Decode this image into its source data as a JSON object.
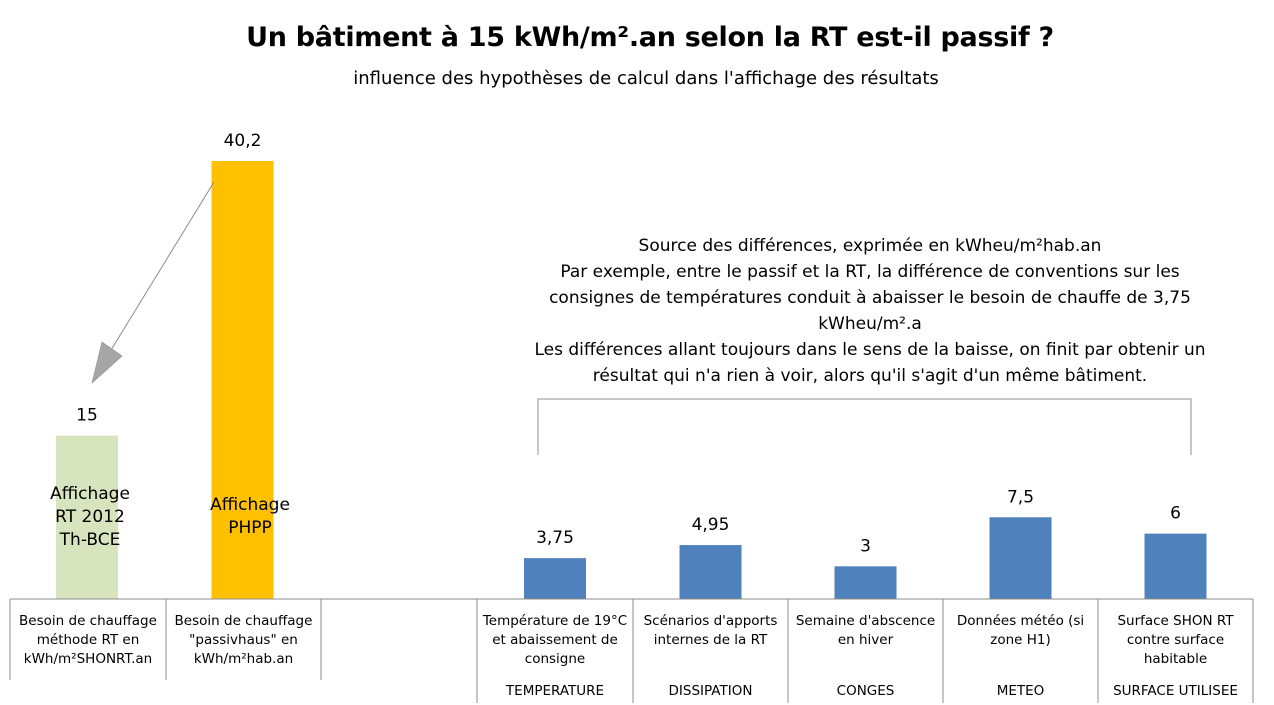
{
  "chart_data": {
    "type": "bar",
    "title": "Un bâtiment à 15 kWh/m².an selon la RT est-il passif ?",
    "subtitle": "influence des hypothèses de calcul dans l'affichage des résultats",
    "categories": [
      "Besoin de chauffage méthode RT en kWh/m²SHONRT.an",
      "Besoin de chauffage \"passivhaus\" en kWh/m²hab.an",
      "Température de 19°C et abaissement de consigne",
      "Scénarios d'apports internes de la RT",
      "Semaine d'abscence en hiver",
      "Données météo (si zone H1)",
      "Surface SHON RT contre surface habitable"
    ],
    "values": [
      15,
      40.2,
      3.75,
      4.95,
      3,
      7.5,
      6
    ],
    "data_labels": [
      "15",
      "40,2",
      "3,75",
      "4,95",
      "3",
      "7,5",
      "6"
    ],
    "bar_colors": [
      "#d7e4bd",
      "#ffc000",
      "#4f81bd",
      "#4f81bd",
      "#4f81bd",
      "#4f81bd",
      "#4f81bd"
    ],
    "group_labels": [
      "TEMPERATURE",
      "DISSIPATION",
      "CONGES",
      "METEO",
      "SURFACE UTILISEE"
    ],
    "bar_texts": [
      [
        "Affichage",
        "RT 2012",
        "Th-BCE"
      ],
      [
        "Affichage",
        "PHPP"
      ]
    ],
    "annotation": [
      "Source des différences, exprimée en kWheu/m²hab.an",
      "Par exemple, entre le passif et la RT, la différence de conventions sur les",
      "consignes de températures conduit à abaisser le besoin de chauffe de 3,75",
      "kWheu/m².a",
      "Les différences allant toujours dans le sens de la baisse, on finit par obtenir un",
      "résultat qui n'a rien à voir, alors qu'il s'agit d'un même bâtiment."
    ],
    "ylim": [
      0,
      40.2
    ],
    "grid": false,
    "legend": "none"
  }
}
